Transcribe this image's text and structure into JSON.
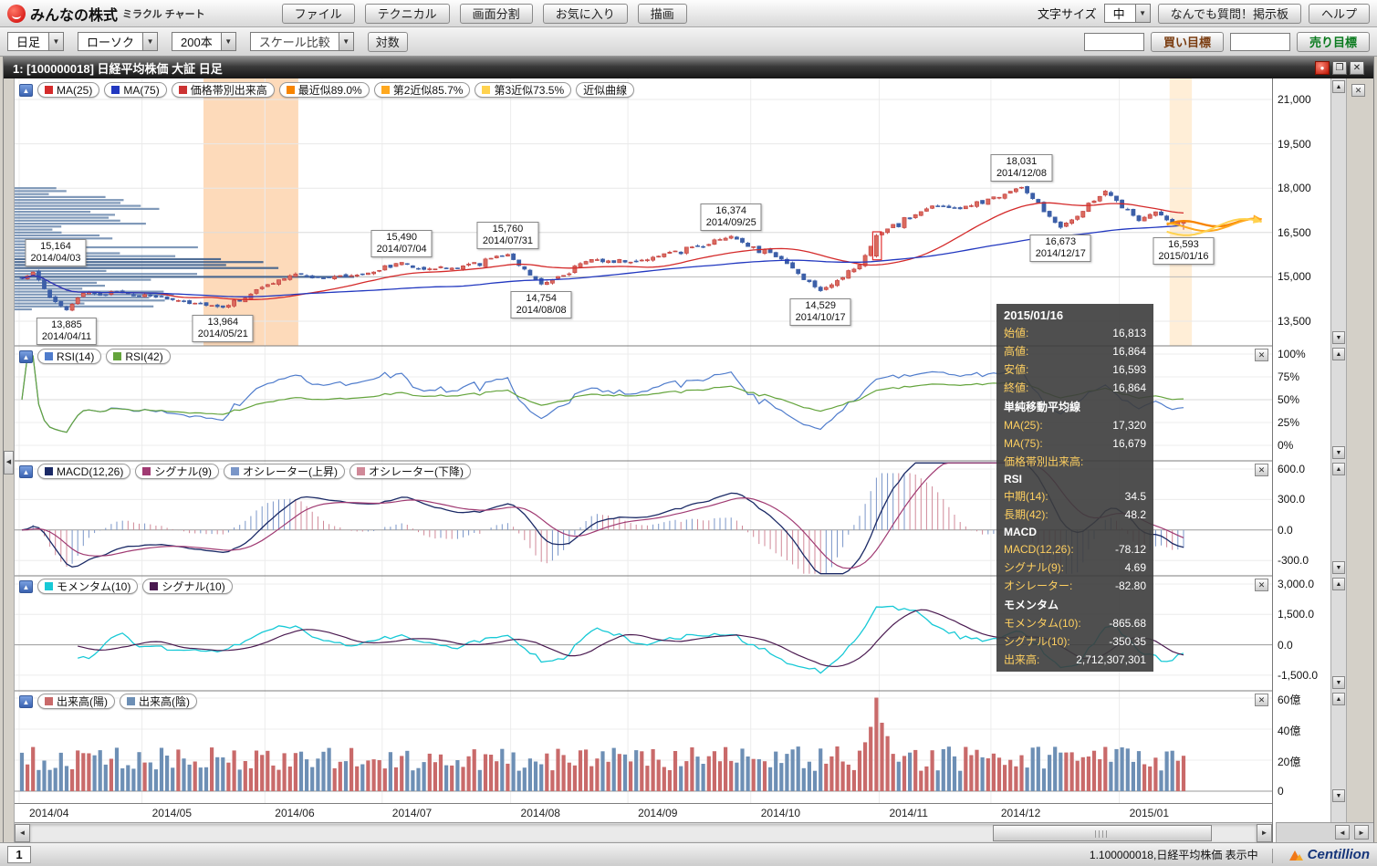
{
  "app": {
    "logo_icon": "red-smile-circle",
    "logo_main": "みんなの株式",
    "logo_sub": "ミラクル チャート",
    "menu": [
      "ファイル",
      "テクニカル",
      "画面分割",
      "お気に入り",
      "描画"
    ],
    "font_size_label": "文字サイズ",
    "font_size_value": "中",
    "qa_button": "なんでも質問！掲示板",
    "help_button": "ヘルプ"
  },
  "controls": {
    "period": "日足",
    "chart_type": "ローソク",
    "bars": "200本",
    "scale_compare": "スケール比較",
    "log_button": "対数",
    "buy_input": "",
    "buy_target": "買い目標",
    "sell_input": "",
    "sell_target": "売り目標"
  },
  "window": {
    "title": "1:  [100000018] 日経平均株価 大証 日足"
  },
  "panels": {
    "price": {
      "legend": [
        {
          "label": "MA(25)",
          "color": "#d42a2a"
        },
        {
          "label": "MA(75)",
          "color": "#2238c0"
        },
        {
          "label": "価格帯別出来高",
          "color": "#cc3333"
        },
        {
          "label": "最近似89.0%",
          "color": "#f78400"
        },
        {
          "label": "第2近似85.7%",
          "color": "#ffa81e"
        },
        {
          "label": "第3近似73.5%",
          "color": "#ffd24e"
        },
        {
          "label": "近似曲線",
          "color": ""
        }
      ],
      "yticks": [
        "21,000",
        "19,500",
        "18,000",
        "16,500",
        "15,000",
        "13,500"
      ]
    },
    "rsi": {
      "legend": [
        {
          "label": "RSI(14)",
          "color": "#4f7ccc"
        },
        {
          "label": "RSI(42)",
          "color": "#64a43c"
        }
      ],
      "yticks": [
        "100%",
        "75%",
        "50%",
        "25%",
        "0%"
      ]
    },
    "macd": {
      "legend": [
        {
          "label": "MACD(12,26)",
          "color": "#1b2a66"
        },
        {
          "label": "シグナル(9)",
          "color": "#a03a72"
        },
        {
          "label": "オシレーター(上昇)",
          "color": "#7a96c8"
        },
        {
          "label": "オシレーター(下降)",
          "color": "#d08998"
        }
      ],
      "yticks": [
        "600.0",
        "300.0",
        "0.0",
        "-300.0"
      ]
    },
    "momentum": {
      "legend": [
        {
          "label": "モメンタム(10)",
          "color": "#17c9d6"
        },
        {
          "label": "シグナル(10)",
          "color": "#4a1a50"
        }
      ],
      "yticks": [
        "3,000.0",
        "1,500.0",
        "0.0",
        "-1,500.0"
      ]
    },
    "volume": {
      "legend": [
        {
          "label": "出来高(陽)",
          "color": "#c96a6a"
        },
        {
          "label": "出来高(陰)",
          "color": "#6d8fb5"
        }
      ],
      "yticks": [
        "60億",
        "40億",
        "20億",
        "0"
      ]
    }
  },
  "tooltip": {
    "title": "2015/01/16",
    "rows": [
      {
        "t": "kv",
        "label": "始値:",
        "value": "16,813"
      },
      {
        "t": "kv",
        "label": "高値:",
        "value": "16,864"
      },
      {
        "t": "kv",
        "label": "安値:",
        "value": "16,593"
      },
      {
        "t": "kv",
        "label": "終値:",
        "value": "16,864"
      },
      {
        "t": "sec",
        "label": "単純移動平均線"
      },
      {
        "t": "kv",
        "label": "MA(25):",
        "value": "17,320"
      },
      {
        "t": "kv",
        "label": "MA(75):",
        "value": "16,679"
      },
      {
        "t": "kv",
        "label": "価格帯別出来高:",
        "value": ""
      },
      {
        "t": "sec",
        "label": "RSI"
      },
      {
        "t": "kv",
        "label": "中期(14):",
        "value": "34.5"
      },
      {
        "t": "kv",
        "label": "長期(42):",
        "value": "48.2"
      },
      {
        "t": "sec",
        "label": "MACD"
      },
      {
        "t": "kv",
        "label": "MACD(12,26):",
        "value": "-78.12"
      },
      {
        "t": "kv",
        "label": "シグナル(9):",
        "value": "4.69"
      },
      {
        "t": "kv",
        "label": "オシレーター:",
        "value": "-82.80"
      },
      {
        "t": "sec",
        "label": "モメンタム"
      },
      {
        "t": "kv",
        "label": "モメンタム(10):",
        "value": "-865.68"
      },
      {
        "t": "kv",
        "label": "シグナル(10):",
        "value": "-350.35"
      },
      {
        "t": "kv",
        "label": "出来高:",
        "value": "2,712,307,301"
      }
    ]
  },
  "statusbar": {
    "tab": "1",
    "right_text": "1.100000018,日経平均株価 表示中",
    "separator": "｜",
    "brand": "Centillion"
  },
  "chart_data": {
    "type": "candlestick",
    "symbol": "日経平均株価",
    "exchange": "大証",
    "timeframe": "日足",
    "bars_setting": "200本",
    "x_range": [
      "2014/04/01",
      "2015/01/16"
    ],
    "x_ticks": [
      "2014/04",
      "2014/05",
      "2014/06",
      "2014/07",
      "2014/08",
      "2014/09",
      "2014/10",
      "2014/11",
      "2014/12",
      "2015/01"
    ],
    "price_axis": {
      "ticks": [
        21000,
        19500,
        18000,
        16500,
        15000,
        13500
      ]
    },
    "rsi_axis": {
      "ticks": [
        100,
        75,
        50,
        25,
        0
      ]
    },
    "macd_axis": {
      "ticks": [
        600,
        300,
        0,
        -300
      ]
    },
    "momentum_axis": {
      "ticks": [
        3000,
        1500,
        0,
        -1500
      ]
    },
    "volume_axis_oku": {
      "ticks": [
        60,
        40,
        20,
        0
      ]
    },
    "annotations": [
      {
        "display": "15,164",
        "date": "2014/04/03",
        "value": 15164,
        "kind": "high"
      },
      {
        "display": "13,885",
        "date": "2014/04/11",
        "value": 13885,
        "kind": "low"
      },
      {
        "display": "13,964",
        "date": "2014/05/21",
        "value": 13964,
        "kind": "low"
      },
      {
        "display": "15,490",
        "date": "2014/07/04",
        "value": 15490,
        "kind": "high"
      },
      {
        "display": "15,760",
        "date": "2014/07/31",
        "value": 15760,
        "kind": "high"
      },
      {
        "display": "14,754",
        "date": "2014/08/08",
        "value": 14754,
        "kind": "low"
      },
      {
        "display": "16,374",
        "date": "2014/09/25",
        "value": 16374,
        "kind": "high"
      },
      {
        "display": "14,529",
        "date": "2014/10/17",
        "value": 14529,
        "kind": "low"
      },
      {
        "display": "18,031",
        "date": "2014/12/08",
        "value": 18031,
        "kind": "high"
      },
      {
        "display": "16,673",
        "date": "2014/12/17",
        "value": 16673,
        "kind": "low"
      },
      {
        "display": "16,593",
        "date": "2015/01/16",
        "value": 16593,
        "kind": "low"
      }
    ],
    "price_anchors": [
      [
        "2014/04/01",
        14950
      ],
      [
        "2014/04/03",
        15164
      ],
      [
        "2014/04/08",
        14300
      ],
      [
        "2014/04/11",
        13885
      ],
      [
        "2014/04/16",
        14450
      ],
      [
        "2014/04/25",
        14460
      ],
      [
        "2014/05/02",
        14350
      ],
      [
        "2014/05/09",
        14200
      ],
      [
        "2014/05/15",
        14100
      ],
      [
        "2014/05/21",
        13964
      ],
      [
        "2014/05/30",
        14650
      ],
      [
        "2014/06/09",
        15100
      ],
      [
        "2014/06/16",
        14950
      ],
      [
        "2014/06/25",
        15100
      ],
      [
        "2014/07/04",
        15490
      ],
      [
        "2014/07/10",
        15250
      ],
      [
        "2014/07/18",
        15300
      ],
      [
        "2014/07/31",
        15760
      ],
      [
        "2014/08/08",
        14754
      ],
      [
        "2014/08/21",
        15590
      ],
      [
        "2014/09/01",
        15500
      ],
      [
        "2014/09/08",
        15700
      ],
      [
        "2014/09/25",
        16374
      ],
      [
        "2014/10/08",
        15600
      ],
      [
        "2014/10/17",
        14529
      ],
      [
        "2014/10/28",
        15400
      ],
      [
        "2014/10/31",
        16400
      ],
      [
        "2014/11/14",
        17400
      ],
      [
        "2014/11/21",
        17300
      ],
      [
        "2014/12/08",
        18031
      ],
      [
        "2014/12/17",
        16673
      ],
      [
        "2014/12/29",
        17900
      ],
      [
        "2015/01/06",
        16900
      ],
      [
        "2015/01/09",
        17200
      ],
      [
        "2015/01/14",
        16800
      ],
      [
        "2015/01/16",
        16864
      ]
    ],
    "last_bar": {
      "date": "2015/01/16",
      "open": 16813,
      "high": 16864,
      "low": 16593,
      "close": 16864,
      "ma25": 17320,
      "ma75": 16679,
      "rsi14": 34.5,
      "rsi42": 48.2,
      "macd": -78.12,
      "macd_signal": 4.69,
      "macd_osc": -82.8,
      "momentum": -865.68,
      "momentum_signal": -350.35,
      "volume": 2712307301
    },
    "highlight_band": {
      "from": "2014/05/16",
      "to": "2014/06/09"
    },
    "pattern_box_date": "2014/10/31",
    "volume_spike": {
      "date": "2014/10/31",
      "oku": 60
    },
    "forecast_curves": [
      {
        "name": "最近似",
        "match": "89.0%",
        "color": "#f78400"
      },
      {
        "name": "第2近似",
        "match": "85.7%",
        "color": "#ffa81e"
      },
      {
        "name": "第3近似",
        "match": "73.5%",
        "color": "#ffd24e"
      }
    ]
  }
}
